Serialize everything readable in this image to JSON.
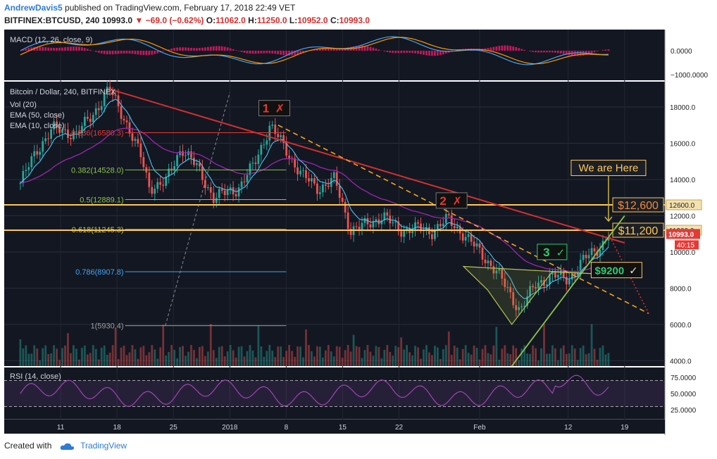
{
  "header": {
    "author": "AndrewDavis5",
    "published_text": "published on TradingView.com, February 17, 2018 22:49 VET",
    "symbol": "BITFINEX:BTCUSD, 240",
    "last": "10993.0",
    "change": "−69.0 (−0.62%)",
    "o_label": "O:",
    "o": "11062.0",
    "h_label": "H:",
    "h": "11250.0",
    "l_label": "L:",
    "l": "10952.0",
    "c_label": "C:",
    "c": "10993.0"
  },
  "footer": {
    "created_with": "Created with",
    "brand": "TradingView"
  },
  "colors": {
    "background": "#131722",
    "up": "#26a69a",
    "down": "#ef5350",
    "ema50": "#9c27b0",
    "ema10": "#4fc3f7",
    "trend": "#d32f2f",
    "dashed": "#f7a21b",
    "support": "#8bc34a",
    "level": "#ffc857"
  },
  "chart_data": {
    "type": "candlestick",
    "title": "Bitcoin / Dollar, 240, BITFINEX",
    "legend": [
      "Vol (20)",
      "EMA (50, close)",
      "EMA (10, close)"
    ],
    "price_axis": {
      "ticks": [
        "4000.0",
        "6000.0",
        "8000.0",
        "10000.0",
        "12000.0",
        "14000.0",
        "16000.0",
        "18000.0"
      ],
      "ylim": [
        3700,
        19400
      ]
    },
    "time_axis": {
      "ticks": [
        "11",
        "18",
        "25",
        "2018",
        "8",
        "15",
        "22",
        "Feb",
        "12",
        "19"
      ],
      "x_dates": [
        "2017-12-11",
        "2017-12-18",
        "2017-12-25",
        "2018-01-01",
        "2018-01-08",
        "2018-01-15",
        "2018-01-22",
        "2018-02-01",
        "2018-02-12",
        "2018-02-19"
      ]
    },
    "price_series": {
      "name": "BTCUSD",
      "x": [
        "2017-12-06",
        "2017-12-08",
        "2017-12-10",
        "2017-12-13",
        "2017-12-15",
        "2017-12-17",
        "2017-12-19",
        "2017-12-21",
        "2017-12-22",
        "2017-12-24",
        "2017-12-26",
        "2017-12-28",
        "2017-12-30",
        "2018-01-02",
        "2018-01-04",
        "2018-01-06",
        "2018-01-08",
        "2018-01-10",
        "2018-01-12",
        "2018-01-14",
        "2018-01-16",
        "2018-01-18",
        "2018-01-20",
        "2018-01-22",
        "2018-01-24",
        "2018-01-26",
        "2018-01-28",
        "2018-01-30",
        "2018-02-01",
        "2018-02-03",
        "2018-02-05",
        "2018-02-06",
        "2018-02-08",
        "2018-02-10",
        "2018-02-12",
        "2018-02-14",
        "2018-02-16",
        "2018-02-17"
      ],
      "close": [
        13800,
        15600,
        16800,
        16500,
        17600,
        19000,
        17300,
        15200,
        13600,
        13800,
        15800,
        14600,
        13000,
        13500,
        14800,
        17000,
        15600,
        14200,
        13500,
        14000,
        11200,
        11500,
        12000,
        11200,
        11300,
        11100,
        11800,
        11000,
        10000,
        9000,
        7500,
        6800,
        8200,
        8700,
        8500,
        9600,
        10300,
        10993
      ]
    },
    "fib_levels": [
      {
        "ratio": "0.236",
        "price": "16580.3",
        "value": 16580.3
      },
      {
        "ratio": "0.382",
        "price": "14528.0",
        "value": 14528.0
      },
      {
        "ratio": "0.5",
        "price": "12889.1",
        "value": 12889.1
      },
      {
        "ratio": "0.618",
        "price": "11245.3",
        "value": 11245.3
      },
      {
        "ratio": "0.786",
        "price": "8907.8",
        "value": 8907.8
      },
      {
        "ratio": "1",
        "price": "5930.4",
        "value": 5930.4
      }
    ],
    "horizontal_levels": [
      {
        "label": "$12,600",
        "axis_label": "12600.0",
        "value": 12600
      },
      {
        "label": "$11,200",
        "axis_label": "11200.0",
        "value": 11200
      }
    ],
    "price_tag": {
      "value": "10993.0",
      "countdown": "40:15"
    },
    "annotations": [
      {
        "text": "1",
        "mark": "✗",
        "date": "2018-01-06",
        "price": 17900
      },
      {
        "text": "2",
        "mark": "✗",
        "date": "2018-01-28",
        "price": 12800
      },
      {
        "text": "3",
        "mark": "✓",
        "date": "2018-02-10",
        "price": 10000
      },
      {
        "text": "$9200",
        "mark": "✓",
        "date": "2018-02-18",
        "price": 9000
      },
      {
        "text": "We are Here",
        "mark": "",
        "date": "2018-02-17",
        "price": 14600
      }
    ],
    "trendlines": {
      "downtrend": {
        "from": {
          "date": "2017-12-17",
          "price": 19000
        },
        "to": {
          "date": "2018-02-19",
          "price": 10500
        }
      },
      "dashed_resistance": {
        "from": {
          "date": "2018-01-07",
          "price": 17000
        },
        "to": {
          "date": "2018-02-22",
          "price": 6600
        }
      },
      "support": {
        "from": {
          "date": "2018-02-05",
          "price": 3700
        },
        "to": {
          "date": "2018-02-19",
          "price": 12000
        }
      }
    },
    "macd": {
      "label": "MACD (12, 26, close, 9)",
      "ticks": [
        "0.0000",
        "−1000.0000"
      ]
    },
    "rsi": {
      "label": "RSI (14, close)",
      "ticks": [
        "75.0000",
        "50.0000",
        "25.0000"
      ]
    }
  }
}
